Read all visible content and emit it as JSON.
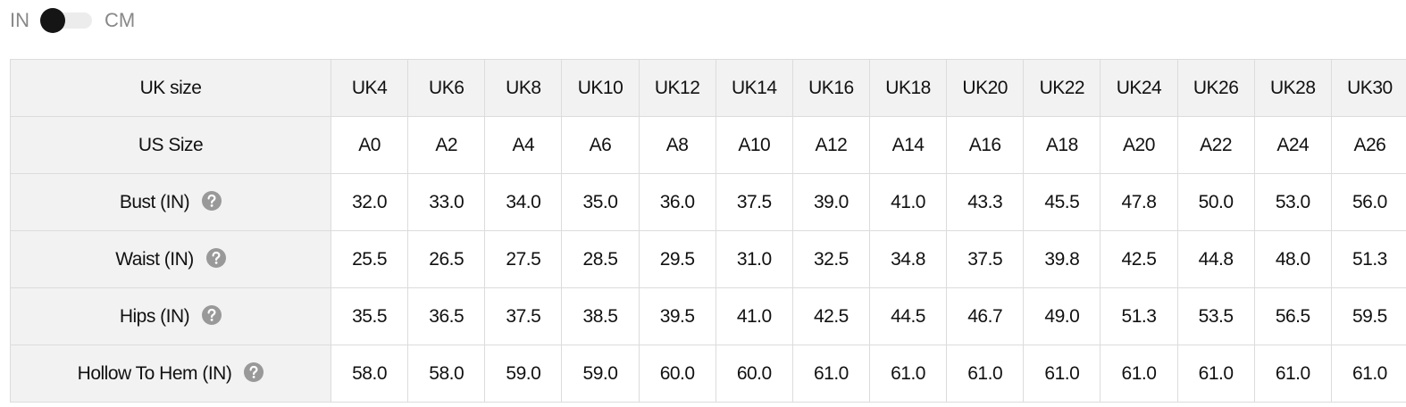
{
  "toggle": {
    "left": "IN",
    "right": "CM"
  },
  "table": {
    "header": [
      "UK size",
      "UK4",
      "UK6",
      "UK8",
      "UK10",
      "UK12",
      "UK14",
      "UK16",
      "UK18",
      "UK20",
      "UK22",
      "UK24",
      "UK26",
      "UK28",
      "UK30"
    ],
    "rows": [
      [
        "US Size",
        "A0",
        "A2",
        "A4",
        "A6",
        "A8",
        "A10",
        "A12",
        "A14",
        "A16",
        "A18",
        "A20",
        "A22",
        "A24",
        "A26"
      ],
      [
        "Bust (IN)",
        "32.0",
        "33.0",
        "34.0",
        "35.0",
        "36.0",
        "37.5",
        "39.0",
        "41.0",
        "43.3",
        "45.5",
        "47.8",
        "50.0",
        "53.0",
        "56.0"
      ],
      [
        "Waist (IN)",
        "25.5",
        "26.5",
        "27.5",
        "28.5",
        "29.5",
        "31.0",
        "32.5",
        "34.8",
        "37.5",
        "39.8",
        "42.5",
        "44.8",
        "48.0",
        "51.3"
      ],
      [
        "Hips (IN)",
        "35.5",
        "36.5",
        "37.5",
        "38.5",
        "39.5",
        "41.0",
        "42.5",
        "44.5",
        "46.7",
        "49.0",
        "51.3",
        "53.5",
        "56.5",
        "59.5"
      ],
      [
        "Hollow To Hem (IN)",
        "58.0",
        "58.0",
        "59.0",
        "59.0",
        "60.0",
        "60.0",
        "61.0",
        "61.0",
        "61.0",
        "61.0",
        "61.0",
        "61.0",
        "61.0",
        "61.0"
      ]
    ]
  }
}
